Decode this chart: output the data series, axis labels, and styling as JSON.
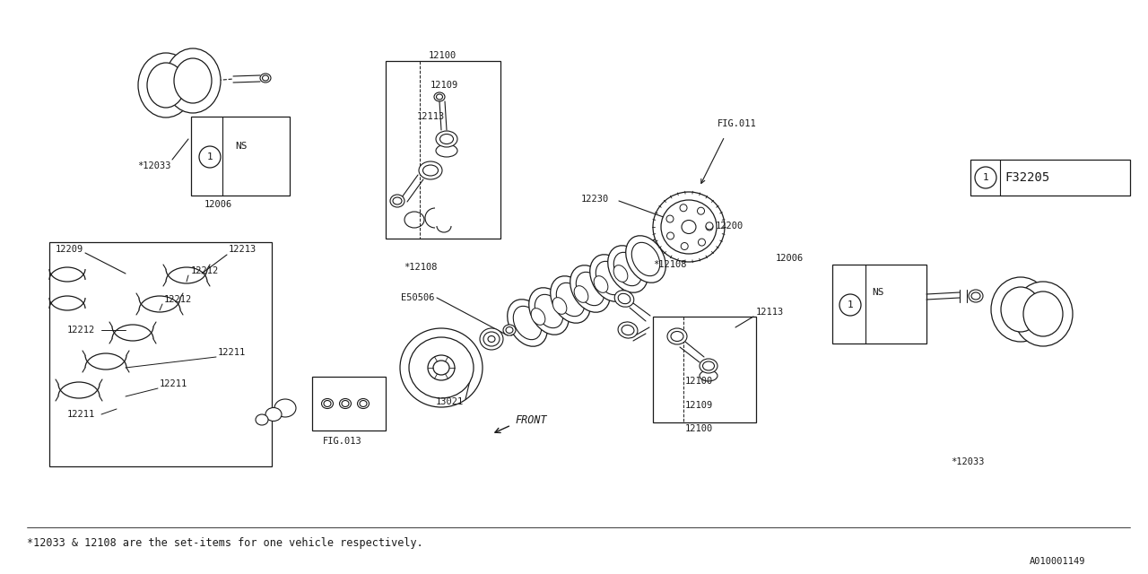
{
  "bg_color": "#ffffff",
  "line_color": "#1a1a1a",
  "footer": "*12033 & 12108 are the set-items for one vehicle respectively.",
  "bottom_ref": "A010001149",
  "fig_ref": "F32205"
}
